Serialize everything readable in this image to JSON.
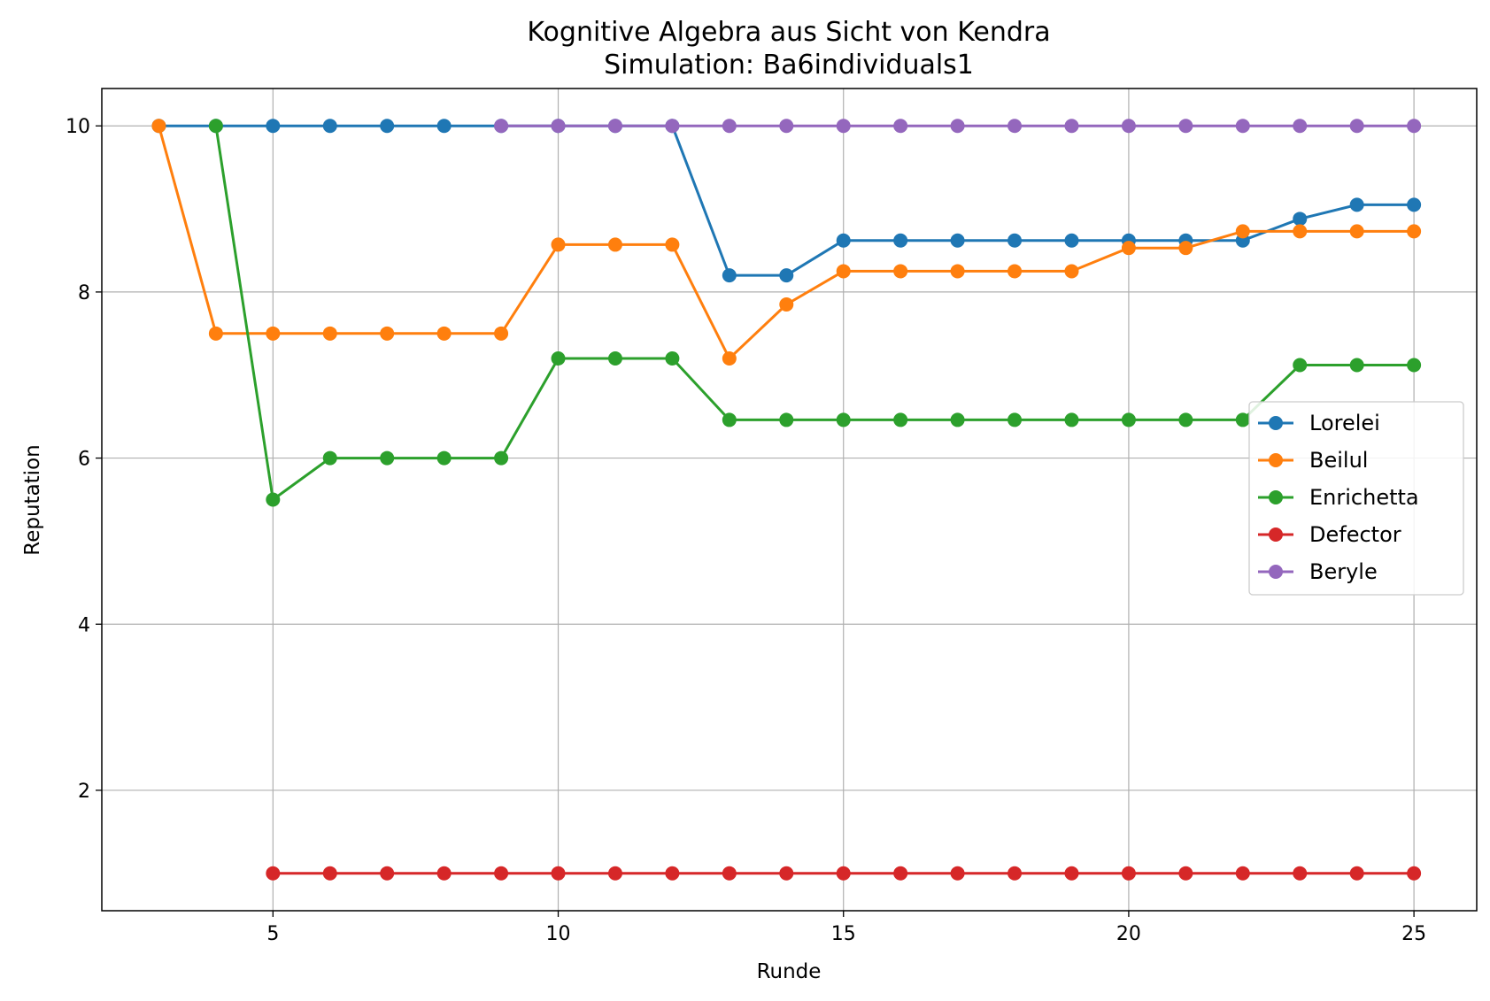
{
  "chart_data": {
    "type": "line",
    "title": "Kognitive Algebra aus Sicht von Kendra",
    "subtitle": "Simulation: Ba6individuals1",
    "xlabel": "Runde",
    "ylabel": "Reputation",
    "xlim": [
      2,
      26.1
    ],
    "ylim": [
      0.55,
      10.45
    ],
    "xticks": [
      5,
      10,
      15,
      20,
      25
    ],
    "yticks": [
      2,
      4,
      6,
      8,
      10
    ],
    "grid": true,
    "legend_position": "center-right",
    "series": [
      {
        "name": "Lorelei",
        "color": "#1f77b4",
        "x": [
          3,
          4,
          5,
          6,
          7,
          8,
          9,
          10,
          11,
          12,
          13,
          14,
          15,
          16,
          17,
          18,
          19,
          20,
          21,
          22,
          23,
          24,
          25
        ],
        "y": [
          10,
          10,
          10,
          10,
          10,
          10,
          10,
          10,
          10,
          10,
          8.2,
          8.2,
          8.62,
          8.62,
          8.62,
          8.62,
          8.62,
          8.62,
          8.62,
          8.62,
          8.88,
          9.05,
          9.05
        ]
      },
      {
        "name": "Beilul",
        "color": "#ff7f0e",
        "x": [
          3,
          4,
          5,
          6,
          7,
          8,
          9,
          10,
          11,
          12,
          13,
          14,
          15,
          16,
          17,
          18,
          19,
          20,
          21,
          22,
          23,
          24,
          25
        ],
        "y": [
          10,
          7.5,
          7.5,
          7.5,
          7.5,
          7.5,
          7.5,
          8.57,
          8.57,
          8.57,
          7.2,
          7.85,
          8.25,
          8.25,
          8.25,
          8.25,
          8.25,
          8.53,
          8.53,
          8.73,
          8.73,
          8.73,
          8.73
        ]
      },
      {
        "name": "Enrichetta",
        "color": "#2ca02c",
        "x": [
          4,
          5,
          6,
          7,
          8,
          9,
          10,
          11,
          12,
          13,
          14,
          15,
          16,
          17,
          18,
          19,
          20,
          21,
          22,
          23,
          24,
          25
        ],
        "y": [
          10,
          5.5,
          6,
          6,
          6,
          6,
          7.2,
          7.2,
          7.2,
          6.46,
          6.46,
          6.46,
          6.46,
          6.46,
          6.46,
          6.46,
          6.46,
          6.46,
          6.46,
          7.12,
          7.12,
          7.12
        ]
      },
      {
        "name": "Defector",
        "color": "#d62728",
        "x": [
          5,
          6,
          7,
          8,
          9,
          10,
          11,
          12,
          13,
          14,
          15,
          16,
          17,
          18,
          19,
          20,
          21,
          22,
          23,
          24,
          25
        ],
        "y": [
          1,
          1,
          1,
          1,
          1,
          1,
          1,
          1,
          1,
          1,
          1,
          1,
          1,
          1,
          1,
          1,
          1,
          1,
          1,
          1,
          1
        ]
      },
      {
        "name": "Beryle",
        "color": "#9467bd",
        "x": [
          9,
          10,
          11,
          12,
          13,
          14,
          15,
          16,
          17,
          18,
          19,
          20,
          21,
          22,
          23,
          24,
          25
        ],
        "y": [
          10,
          10,
          10,
          10,
          10,
          10,
          10,
          10,
          10,
          10,
          10,
          10,
          10,
          10,
          10,
          10,
          10
        ]
      }
    ]
  }
}
